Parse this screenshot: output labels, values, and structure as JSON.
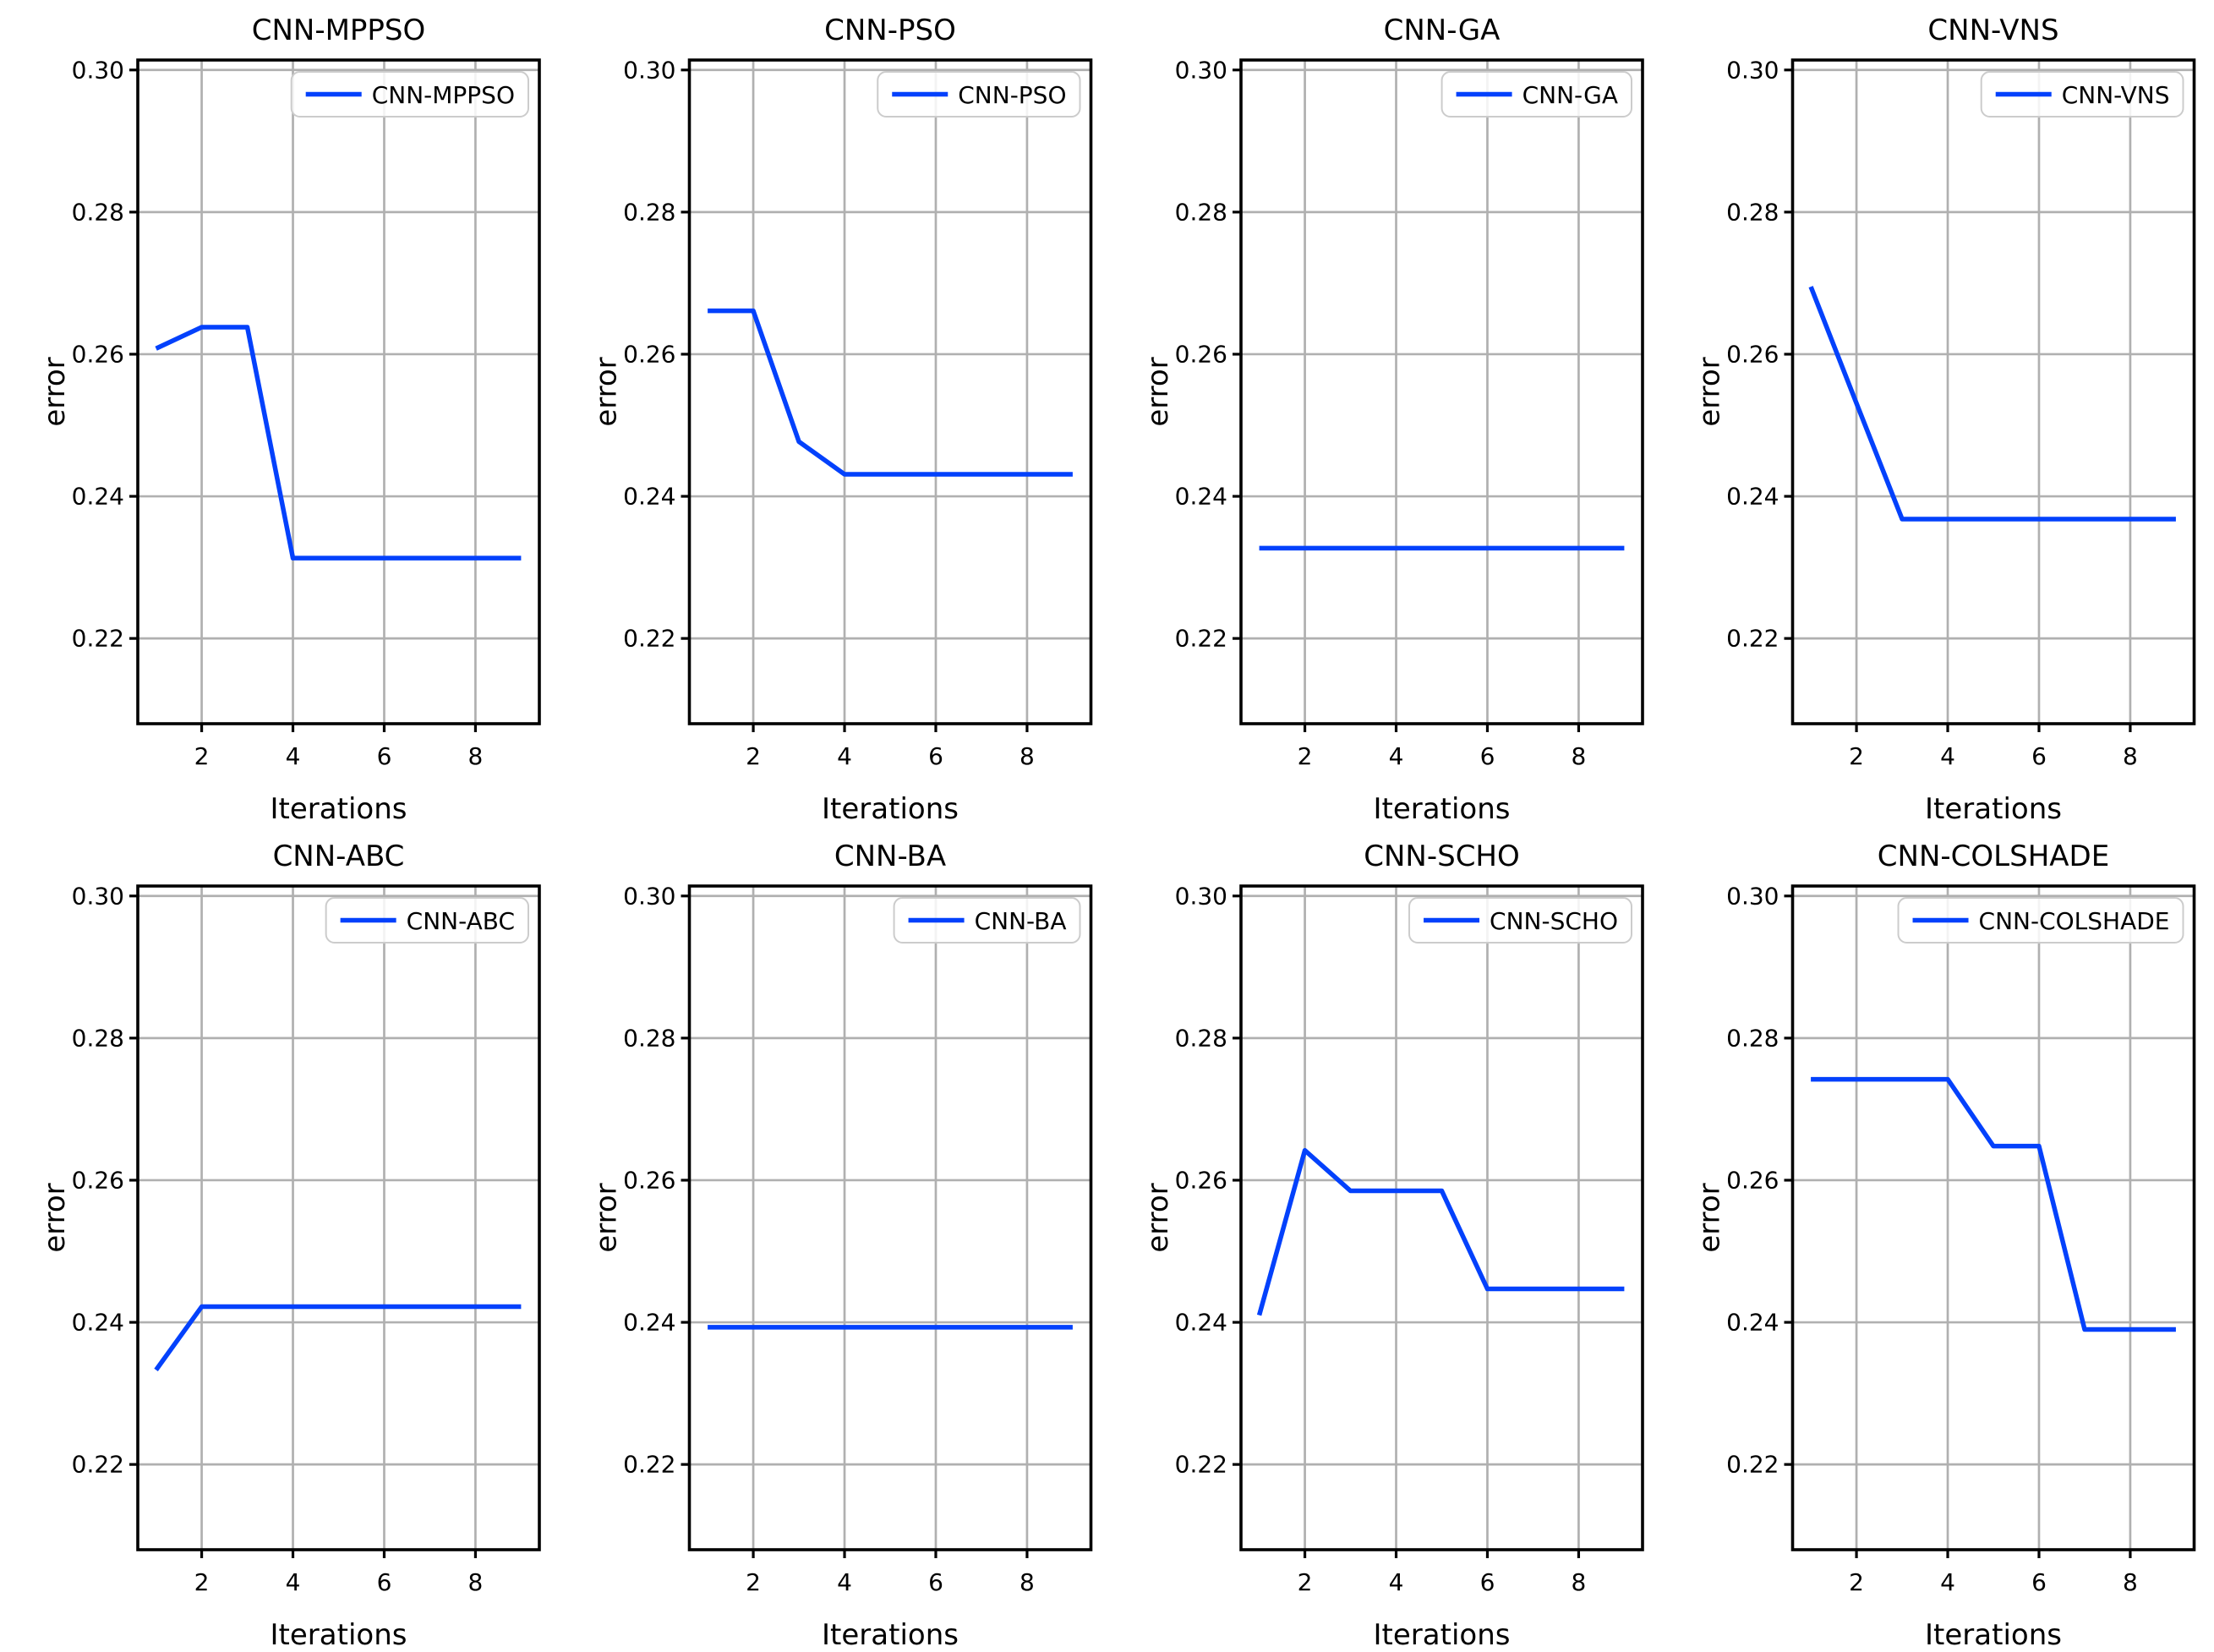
{
  "figure": {
    "background": "#ffffff",
    "grid_color": "#b0b0b0",
    "axis_color": "#000000",
    "line_color": "#0341fc",
    "legend_face": "#ffffff",
    "legend_edge": "#cccccc"
  },
  "chart_data": [
    {
      "type": "line",
      "title": "CNN-MPPSO",
      "legend_label": "CNN-MPPSO",
      "xlabel": "Iterations",
      "ylabel": "error",
      "x": [
        1,
        2,
        3,
        4,
        5,
        6,
        7,
        8,
        9
      ],
      "values": [
        0.2608,
        0.2638,
        0.2638,
        0.2313,
        0.2313,
        0.2313,
        0.2313,
        0.2313,
        0.2313
      ],
      "xticks": [
        2,
        4,
        6,
        8
      ],
      "xticklabels": [
        "2",
        "4",
        "6",
        "8"
      ],
      "yticks": [
        0.22,
        0.24,
        0.26,
        0.28,
        0.3
      ],
      "yticklabels": [
        "0.22",
        "0.24",
        "0.26",
        "0.28",
        "0.30"
      ],
      "xlim": [
        0.6,
        9.4
      ],
      "ylim": [
        0.208,
        0.3014
      ],
      "grid": true,
      "legend_position": "upper right",
      "line_color": "#0341fc"
    },
    {
      "type": "line",
      "title": "CNN-PSO",
      "legend_label": "CNN-PSO",
      "xlabel": "Iterations",
      "ylabel": "error",
      "x": [
        1,
        2,
        3,
        4,
        5,
        6,
        7,
        8,
        9
      ],
      "values": [
        0.2661,
        0.2661,
        0.2477,
        0.2431,
        0.2431,
        0.2431,
        0.2431,
        0.2431,
        0.2431
      ],
      "xticks": [
        2,
        4,
        6,
        8
      ],
      "xticklabels": [
        "2",
        "4",
        "6",
        "8"
      ],
      "yticks": [
        0.22,
        0.24,
        0.26,
        0.28,
        0.3
      ],
      "yticklabels": [
        "0.22",
        "0.24",
        "0.26",
        "0.28",
        "0.30"
      ],
      "xlim": [
        0.6,
        9.4
      ],
      "ylim": [
        0.208,
        0.3014
      ],
      "grid": true,
      "legend_position": "upper right",
      "line_color": "#0341fc"
    },
    {
      "type": "line",
      "title": "CNN-GA",
      "legend_label": "CNN-GA",
      "xlabel": "Iterations",
      "ylabel": "error",
      "x": [
        1,
        2,
        3,
        4,
        5,
        6,
        7,
        8,
        9
      ],
      "values": [
        0.2327,
        0.2327,
        0.2327,
        0.2327,
        0.2327,
        0.2327,
        0.2327,
        0.2327,
        0.2327
      ],
      "xticks": [
        2,
        4,
        6,
        8
      ],
      "xticklabels": [
        "2",
        "4",
        "6",
        "8"
      ],
      "yticks": [
        0.22,
        0.24,
        0.26,
        0.28,
        0.3
      ],
      "yticklabels": [
        "0.22",
        "0.24",
        "0.26",
        "0.28",
        "0.30"
      ],
      "xlim": [
        0.6,
        9.4
      ],
      "ylim": [
        0.208,
        0.3014
      ],
      "grid": true,
      "legend_position": "upper right",
      "line_color": "#0341fc"
    },
    {
      "type": "line",
      "title": "CNN-VNS",
      "legend_label": "CNN-VNS",
      "xlabel": "Iterations",
      "ylabel": "error",
      "x": [
        1,
        2,
        3,
        4,
        5,
        6,
        7,
        8,
        9
      ],
      "values": [
        0.2695,
        0.2531,
        0.2368,
        0.2368,
        0.2368,
        0.2368,
        0.2368,
        0.2368,
        0.2368
      ],
      "xticks": [
        2,
        4,
        6,
        8
      ],
      "xticklabels": [
        "2",
        "4",
        "6",
        "8"
      ],
      "yticks": [
        0.22,
        0.24,
        0.26,
        0.28,
        0.3
      ],
      "yticklabels": [
        "0.22",
        "0.24",
        "0.26",
        "0.28",
        "0.30"
      ],
      "xlim": [
        0.6,
        9.4
      ],
      "ylim": [
        0.208,
        0.3014
      ],
      "grid": true,
      "legend_position": "upper right",
      "line_color": "#0341fc"
    },
    {
      "type": "line",
      "title": "CNN-ABC",
      "legend_label": "CNN-ABC",
      "xlabel": "Iterations",
      "ylabel": "error",
      "x": [
        1,
        2,
        3,
        4,
        5,
        6,
        7,
        8,
        9
      ],
      "values": [
        0.2333,
        0.2422,
        0.2422,
        0.2422,
        0.2422,
        0.2422,
        0.2422,
        0.2422,
        0.2422
      ],
      "xticks": [
        2,
        4,
        6,
        8
      ],
      "xticklabels": [
        "2",
        "4",
        "6",
        "8"
      ],
      "yticks": [
        0.22,
        0.24,
        0.26,
        0.28,
        0.3
      ],
      "yticklabels": [
        "0.22",
        "0.24",
        "0.26",
        "0.28",
        "0.30"
      ],
      "xlim": [
        0.6,
        9.4
      ],
      "ylim": [
        0.208,
        0.3014
      ],
      "grid": true,
      "legend_position": "upper right",
      "line_color": "#0341fc"
    },
    {
      "type": "line",
      "title": "CNN-BA",
      "legend_label": "CNN-BA",
      "xlabel": "Iterations",
      "ylabel": "error",
      "x": [
        1,
        2,
        3,
        4,
        5,
        6,
        7,
        8,
        9
      ],
      "values": [
        0.2393,
        0.2393,
        0.2393,
        0.2393,
        0.2393,
        0.2393,
        0.2393,
        0.2393,
        0.2393
      ],
      "xticks": [
        2,
        4,
        6,
        8
      ],
      "xticklabels": [
        "2",
        "4",
        "6",
        "8"
      ],
      "yticks": [
        0.22,
        0.24,
        0.26,
        0.28,
        0.3
      ],
      "yticklabels": [
        "0.22",
        "0.24",
        "0.26",
        "0.28",
        "0.30"
      ],
      "xlim": [
        0.6,
        9.4
      ],
      "ylim": [
        0.208,
        0.3014
      ],
      "grid": true,
      "legend_position": "upper right",
      "line_color": "#0341fc"
    },
    {
      "type": "line",
      "title": "CNN-SCHO",
      "legend_label": "CNN-SCHO",
      "xlabel": "Iterations",
      "ylabel": "error",
      "x": [
        1,
        2,
        3,
        4,
        5,
        6,
        7,
        8,
        9
      ],
      "values": [
        0.241,
        0.2642,
        0.2585,
        0.2585,
        0.2585,
        0.2447,
        0.2447,
        0.2447,
        0.2447
      ],
      "xticks": [
        2,
        4,
        6,
        8
      ],
      "xticklabels": [
        "2",
        "4",
        "6",
        "8"
      ],
      "yticks": [
        0.22,
        0.24,
        0.26,
        0.28,
        0.3
      ],
      "yticklabels": [
        "0.22",
        "0.24",
        "0.26",
        "0.28",
        "0.30"
      ],
      "xlim": [
        0.6,
        9.4
      ],
      "ylim": [
        0.208,
        0.3014
      ],
      "grid": true,
      "legend_position": "upper right",
      "line_color": "#0341fc"
    },
    {
      "type": "line",
      "title": "CNN-COLSHADE",
      "legend_label": "CNN-COLSHADE",
      "xlabel": "Iterations",
      "ylabel": "error",
      "x": [
        1,
        2,
        3,
        4,
        5,
        6,
        7,
        8,
        9
      ],
      "values": [
        0.2742,
        0.2742,
        0.2742,
        0.2742,
        0.2648,
        0.2648,
        0.239,
        0.239,
        0.239
      ],
      "xticks": [
        2,
        4,
        6,
        8
      ],
      "xticklabels": [
        "2",
        "4",
        "6",
        "8"
      ],
      "yticks": [
        0.22,
        0.24,
        0.26,
        0.28,
        0.3
      ],
      "yticklabels": [
        "0.22",
        "0.24",
        "0.26",
        "0.28",
        "0.30"
      ],
      "xlim": [
        0.6,
        9.4
      ],
      "ylim": [
        0.208,
        0.3014
      ],
      "grid": true,
      "legend_position": "upper right",
      "line_color": "#0341fc"
    }
  ]
}
